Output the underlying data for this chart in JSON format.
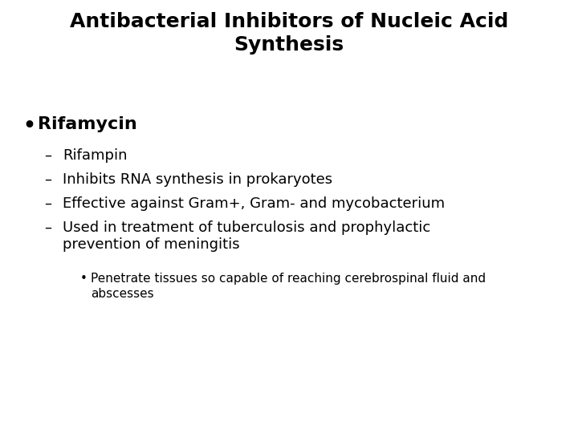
{
  "title_line1": "Antibacterial Inhibitors of Nucleic Acid",
  "title_line2": "Synthesis",
  "background_color": "#ffffff",
  "text_color": "#000000",
  "title_fontsize": 18,
  "title_fontweight": "bold",
  "bullet_fontsize": 16,
  "bullet_fontweight": "bold",
  "dash_fontsize": 13,
  "dash_fontweight": "normal",
  "sub_bullet_fontsize": 11,
  "sub_bullet_fontweight": "normal",
  "bullet_item": "Rifamycin",
  "dash_items": [
    "Rifampin",
    "Inhibits RNA synthesis in prokaryotes",
    "Effective against Gram+, Gram- and mycobacterium",
    "Used in treatment of tuberculosis and prophylactic\nprevention of meningitis"
  ],
  "sub_bullet_item": "Penetrate tissues so capable of reaching cerebrospinal fluid and\nabscesses",
  "font_family": "DejaVu Sans"
}
